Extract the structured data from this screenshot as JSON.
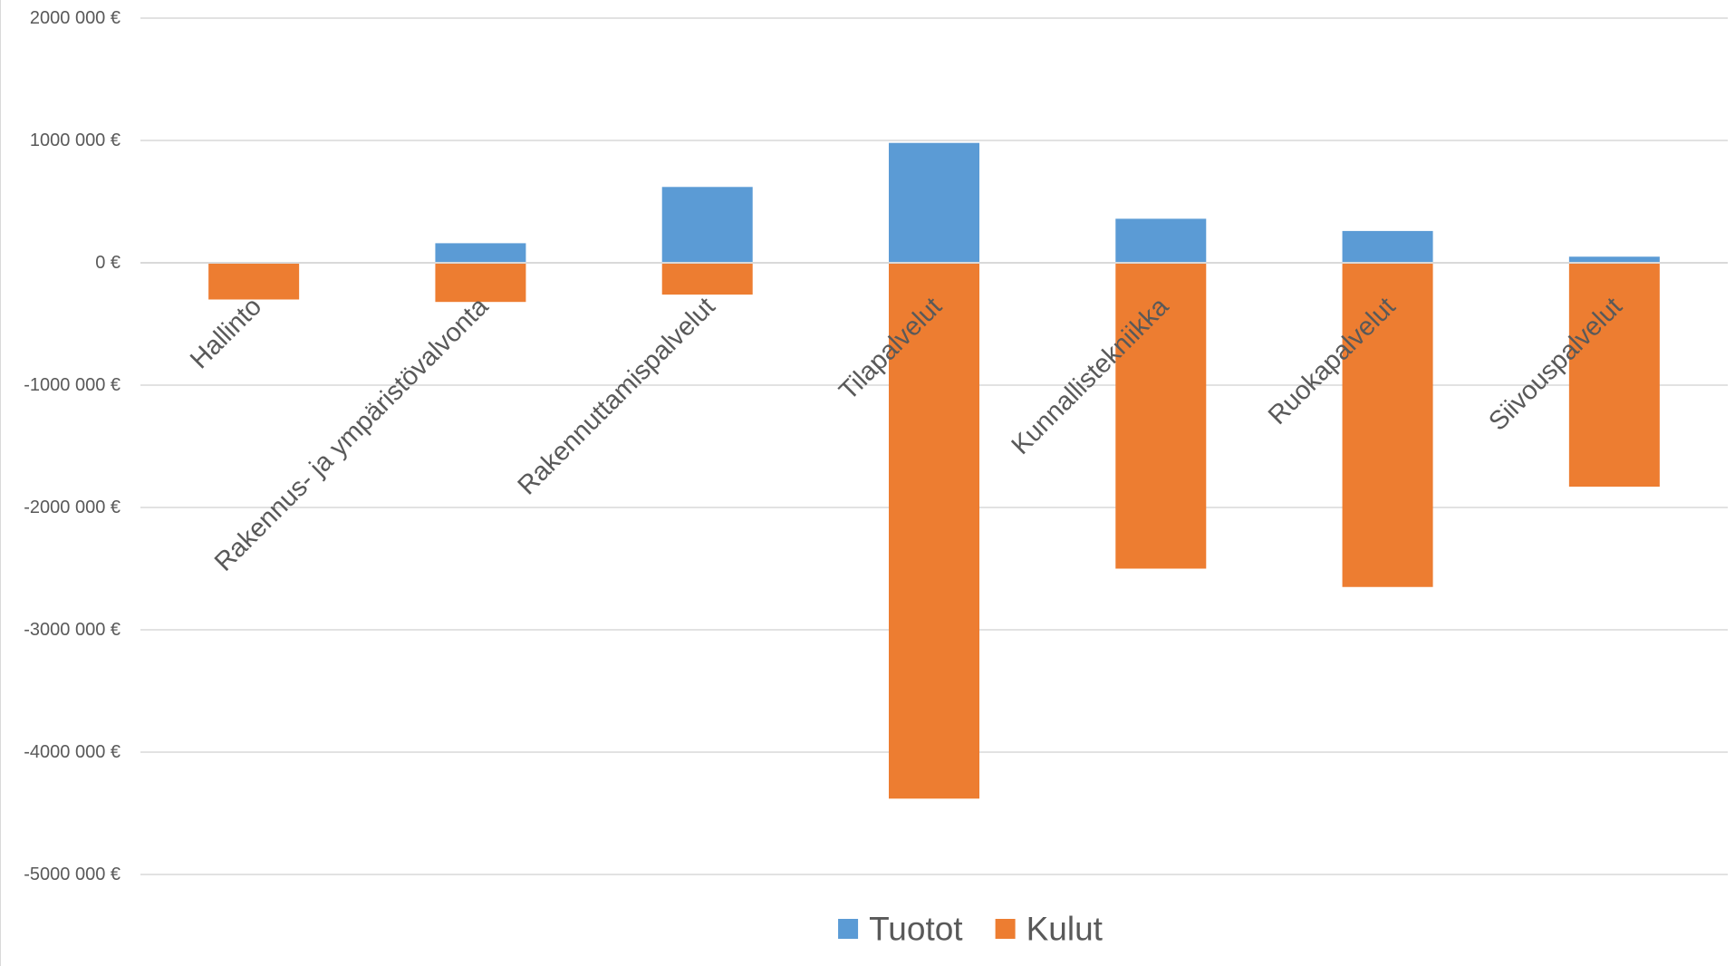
{
  "chart_data": {
    "type": "bar",
    "stacked": true,
    "categories": [
      "Hallinto",
      "Rakennus- ja ympäristövalvonta",
      "Rakennuttamispalvelut",
      "Tilapalvelut",
      "Kunnallistekniikka",
      "Ruokapalvelut",
      "Siivouspalvelut"
    ],
    "series": [
      {
        "name": "Tuotot",
        "color": "#5b9bd5",
        "values": [
          0,
          160000,
          620000,
          980000,
          360000,
          260000,
          50000
        ]
      },
      {
        "name": "Kulut",
        "color": "#ed7d31",
        "values": [
          -300000,
          -320000,
          -260000,
          -4380000,
          -2500000,
          -2650000,
          -1830000
        ]
      }
    ],
    "ylim": [
      -5000000,
      2000000
    ],
    "y_ticks": [
      2000000,
      1000000,
      0,
      -1000000,
      -2000000,
      -3000000,
      -4000000,
      -5000000
    ],
    "y_tick_labels": [
      "2000 000 €",
      "1000 000 €",
      "0 €",
      "-1000 000 €",
      "-2000 000 €",
      "-3000 000 €",
      "-4000 000 €",
      "-5000 000 €"
    ],
    "grid": true,
    "legend_position": "bottom",
    "title": "",
    "xlabel": "",
    "ylabel": ""
  }
}
